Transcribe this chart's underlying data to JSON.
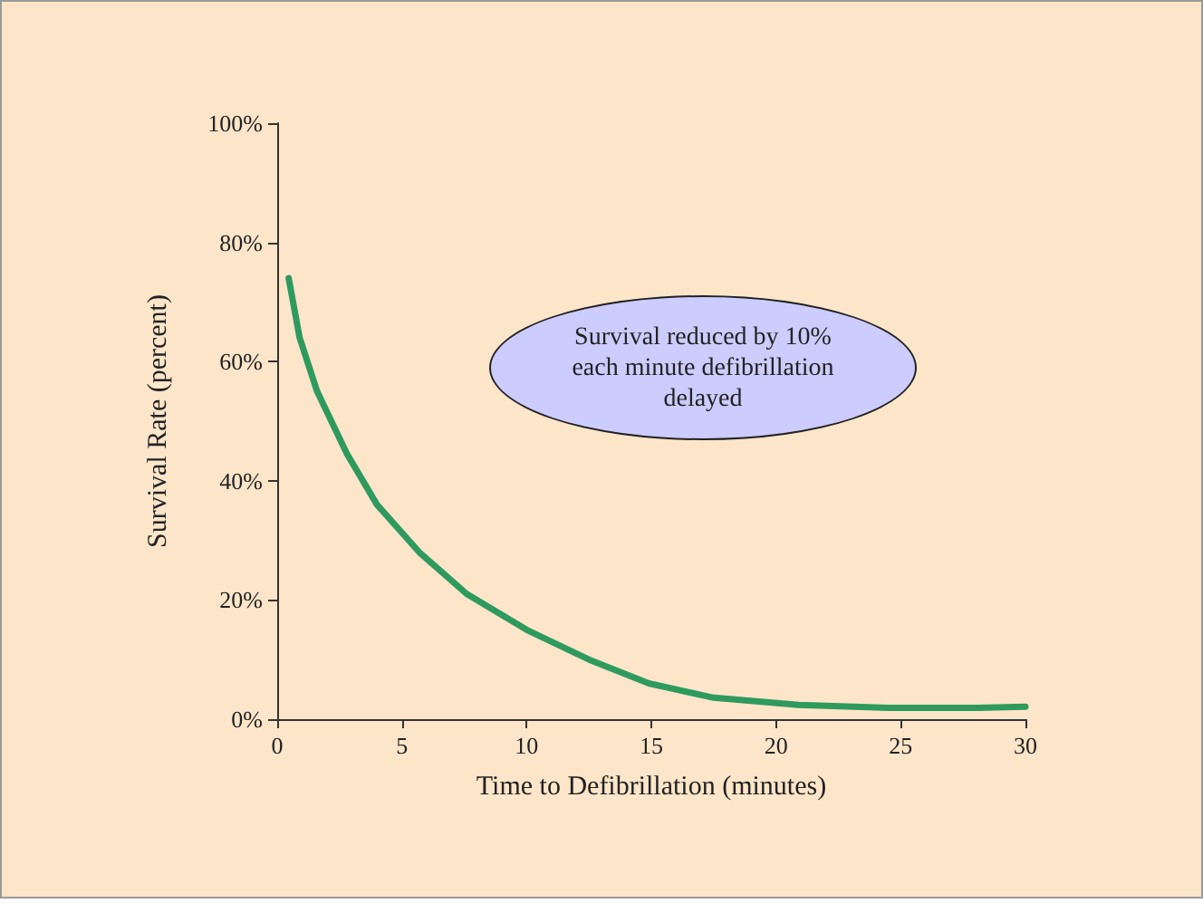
{
  "chart_data": {
    "type": "line",
    "xlabel": "Time to Defibrillation (minutes)",
    "ylabel": "Survival Rate (percent)",
    "annotations": [
      "Survival reduced by 10%\neach minute defibrillation\ndelayed"
    ],
    "x": [
      0.46,
      0.9,
      1.6,
      2.8,
      4.0,
      5.7,
      7.6,
      10.0,
      12.5,
      14.9,
      17.5,
      20.9,
      24.5,
      28.1,
      30
    ],
    "series": [
      {
        "color": "#2e9a5e",
        "values": [
          74,
          64,
          55,
          44.5,
          36,
          28,
          21,
          15,
          10,
          6,
          3.6,
          2.4,
          1.9,
          1.9,
          2.1
        ]
      }
    ],
    "xlim": [
      0,
      30
    ],
    "xticks": [
      0,
      5,
      10,
      15,
      20,
      25,
      30
    ],
    "ylim": [
      0,
      100
    ],
    "yticks": [
      {
        "value": 0,
        "label": "0%"
      },
      {
        "value": 20,
        "label": "20%"
      },
      {
        "value": 40,
        "label": "40%"
      },
      {
        "value": 60,
        "label": "60%"
      },
      {
        "value": 80,
        "label": "80%"
      },
      {
        "value": 100,
        "label": "100%"
      }
    ],
    "grid": false,
    "marker": "none",
    "line_style": "solid"
  }
}
